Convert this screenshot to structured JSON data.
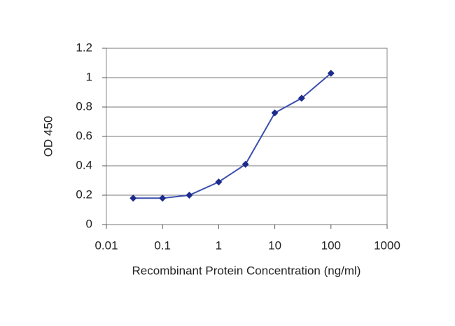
{
  "chart_data": {
    "type": "line",
    "xlabel": "Recombinant Protein Concentration (ng/ml)",
    "ylabel": "OD 450",
    "xscale": "log",
    "x": [
      0.03,
      0.1,
      0.3,
      1,
      3,
      10,
      30,
      100
    ],
    "series": [
      {
        "color": "#3b4fae",
        "marker_color": "#1c2b8c",
        "values": [
          0.18,
          0.18,
          0.2,
          0.29,
          0.41,
          0.76,
          0.86,
          1.03
        ]
      }
    ],
    "xlim": [
      0.01,
      1000
    ],
    "xticks": [
      0.01,
      0.1,
      1,
      10,
      100,
      1000
    ],
    "ylim": [
      0,
      1.2
    ],
    "yticks": [
      0,
      0.2,
      0.4,
      0.6,
      0.8,
      1,
      1.2
    ],
    "grid": true
  }
}
